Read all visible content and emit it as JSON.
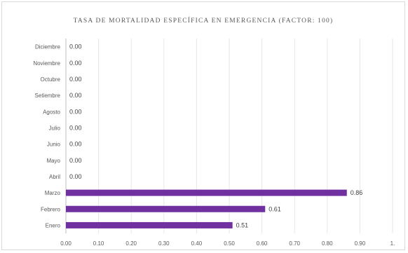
{
  "chart_data": {
    "type": "bar",
    "orientation": "horizontal",
    "title": "TASA DE MORTALIDAD ESPECÍFICA EN EMERGENCIA  (FACTOR: 100)",
    "categories": [
      "Enero",
      "Febrero",
      "Marzo",
      "Abril",
      "Mayo",
      "Junio",
      "Julio",
      "Agosto",
      "Setiembre",
      "Octubre",
      "Noviembre",
      "Diciembre"
    ],
    "values": [
      0.51,
      0.61,
      0.86,
      0.0,
      0.0,
      0.0,
      0.0,
      0.0,
      0.0,
      0.0,
      0.0,
      0.0
    ],
    "data_labels": [
      "0.51",
      "0.61",
      "0.86",
      "0.00",
      "0.00",
      "0.00",
      "0.00",
      "0.00",
      "0.00",
      "0.00",
      "0.00",
      "0.00"
    ],
    "x_ticks": [
      "0.00",
      "0.10",
      "0.20",
      "0.30",
      "0.40",
      "0.50",
      "0.60",
      "0.70",
      "0.80",
      "0.90",
      "1."
    ],
    "xlim": [
      0,
      1.0
    ],
    "grid": true,
    "legend": "none",
    "colors": {
      "bar": "#7030a0",
      "grid": "#e6e6e6",
      "axis": "#bfbfbf"
    }
  }
}
